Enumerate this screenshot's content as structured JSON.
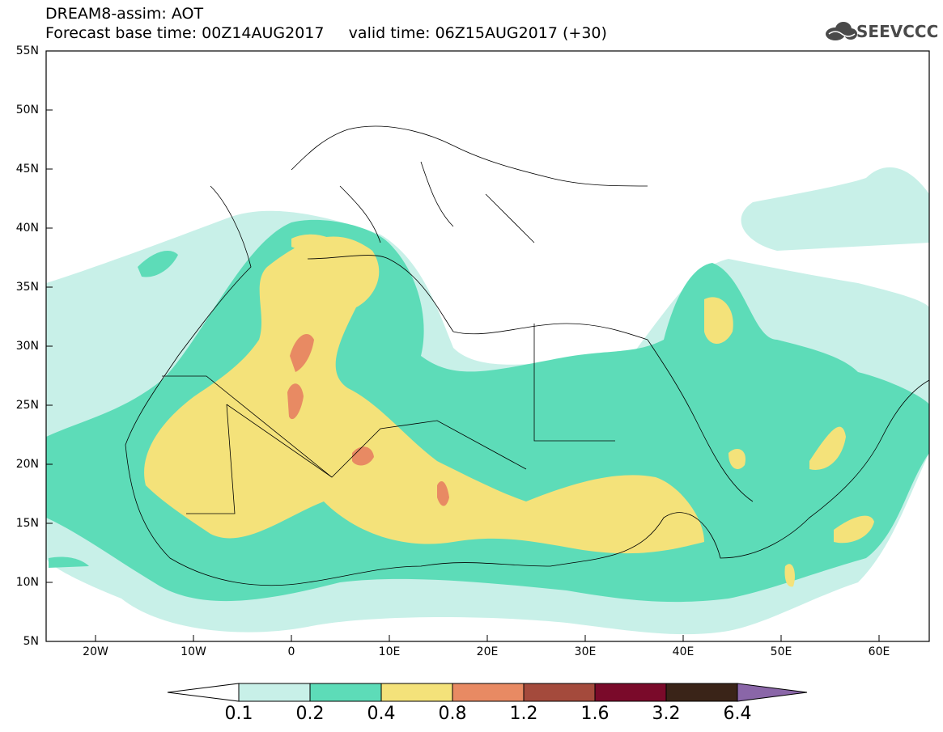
{
  "header": {
    "line1": "DREAM8-assim: AOT",
    "line2": "Forecast base time: 00Z14AUG2017     valid time: 06Z15AUG2017 (+30)"
  },
  "logo": {
    "text": "SEEVCCC",
    "icon": "cloud-logo-icon"
  },
  "axes": {
    "lat_labels": [
      "55N",
      "50N",
      "45N",
      "40N",
      "35N",
      "30N",
      "25N",
      "20N",
      "15N",
      "10N",
      "5N"
    ],
    "lon_labels": [
      "20W",
      "10W",
      "0",
      "10E",
      "20E",
      "30E",
      "40E",
      "50E",
      "60E"
    ]
  },
  "colorbar": {
    "labels": [
      "0.1",
      "0.2",
      "0.4",
      "0.8",
      "1.2",
      "1.6",
      "3.2",
      "6.4"
    ],
    "colors": [
      "#c8f0e8",
      "#5ddcb8",
      "#f4e27a",
      "#e88a63",
      "#a44a3c",
      "#7a0a2a",
      "#3a2418",
      "#8a66a8"
    ]
  },
  "colors": {
    "level1": "#c8f0e8",
    "level2": "#5ddcb8",
    "level3": "#f4e27a",
    "level4": "#e88a63",
    "border": "#000000"
  }
}
